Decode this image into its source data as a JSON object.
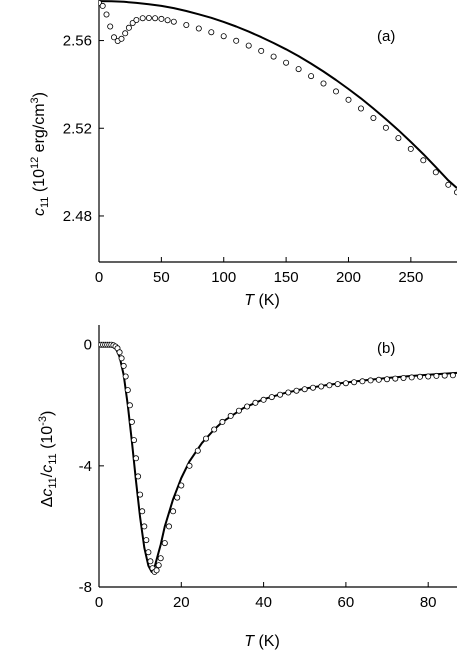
{
  "chart_data": [
    {
      "panel": "(a)",
      "type": "scatter",
      "xlabel": {
        "symbol": "T",
        "unit": " (K)"
      },
      "ylabel": {
        "symbol": "c",
        "sub": "11",
        "prefix": " (10",
        "exp": "12",
        "mid": " erg/cm",
        "exp2": "3",
        "suffix": ")"
      },
      "xlim": [
        0,
        287
      ],
      "ylim": [
        2.459,
        2.5785
      ],
      "xticks": [
        0,
        50,
        100,
        150,
        200,
        250
      ],
      "xtick_labels": [
        "0",
        "50",
        "100",
        "150",
        "200",
        "250"
      ],
      "yticks": [
        2.48,
        2.52,
        2.56
      ],
      "ytick_labels": [
        "2.48",
        "2.52",
        "2.56"
      ],
      "series": [
        {
          "style": "line",
          "x": [
            0,
            10,
            20,
            30,
            40,
            50,
            60,
            70,
            80,
            90,
            100,
            110,
            120,
            130,
            140,
            150,
            160,
            170,
            180,
            190,
            200,
            210,
            220,
            230,
            240,
            250,
            260,
            270,
            280,
            287
          ],
          "y": [
            2.578,
            2.5779,
            2.5777,
            2.5772,
            2.5766,
            2.5758,
            2.5748,
            2.5735,
            2.572,
            2.5704,
            2.5685,
            2.5664,
            2.5641,
            2.5616,
            2.5589,
            2.556,
            2.5529,
            2.5495,
            2.5459,
            2.542,
            2.5379,
            2.5336,
            2.529,
            2.5242,
            2.5191,
            2.5138,
            2.5082,
            2.5023,
            2.4962,
            2.4927
          ]
        },
        {
          "style": "markers",
          "x": [
            0,
            3,
            6,
            9,
            12,
            15,
            18,
            21,
            24,
            27,
            30,
            35,
            40,
            45,
            50,
            55,
            60,
            70,
            80,
            90,
            100,
            110,
            120,
            130,
            140,
            150,
            160,
            170,
            180,
            190,
            200,
            210,
            220,
            230,
            240,
            250,
            260,
            270,
            280,
            287
          ],
          "y": [
            2.5772,
            2.5758,
            2.5719,
            2.5664,
            2.5615,
            2.5598,
            2.5608,
            2.5633,
            2.5658,
            2.568,
            2.5694,
            2.5702,
            2.5703,
            2.5702,
            2.5699,
            2.5693,
            2.5686,
            2.5671,
            2.5655,
            2.5638,
            2.562,
            2.5599,
            2.5577,
            2.5553,
            2.5527,
            2.5499,
            2.547,
            2.5438,
            2.5404,
            2.5368,
            2.533,
            2.529,
            2.5247,
            2.5202,
            2.5155,
            2.5106,
            2.5054,
            2.4999,
            2.4942,
            2.4908
          ]
        }
      ]
    },
    {
      "panel": "(b)",
      "type": "scatter",
      "xlabel": {
        "symbol": "T",
        "unit": " (K)"
      },
      "ylabel": {
        "delta": "Δ",
        "symbol": "c",
        "sub": "11",
        "slash": "/",
        "symbol2": "c",
        "sub2": "11",
        "prefix": " (10",
        "exp": "-3",
        "suffix": ")"
      },
      "xlim": [
        0,
        87
      ],
      "ylim": [
        -8,
        0.65
      ],
      "xticks": [
        0,
        20,
        40,
        60,
        80
      ],
      "xtick_labels": [
        "0",
        "20",
        "40",
        "60",
        "80"
      ],
      "yticks": [
        -8,
        -4,
        0
      ],
      "ytick_labels": [
        "-8",
        "-4",
        "0"
      ],
      "series": [
        {
          "style": "line",
          "x": [
            0,
            2,
            4,
            5,
            6,
            7,
            8,
            9,
            10,
            11,
            12,
            12.8,
            13.3,
            14,
            15,
            16,
            18,
            20,
            22,
            25,
            28,
            30,
            35,
            40,
            45,
            50,
            55,
            60,
            65,
            70,
            75,
            80,
            87
          ],
          "y": [
            0,
            0,
            -0.1,
            -0.4,
            -1.0,
            -2.0,
            -3.2,
            -4.5,
            -5.7,
            -6.7,
            -7.3,
            -7.5,
            -7.45,
            -7.1,
            -6.6,
            -6.0,
            -5.1,
            -4.4,
            -3.85,
            -3.25,
            -2.8,
            -2.55,
            -2.1,
            -1.8,
            -1.6,
            -1.45,
            -1.34,
            -1.25,
            -1.17,
            -1.1,
            -1.04,
            -0.99,
            -0.93
          ]
        },
        {
          "style": "markers",
          "x": [
            0.5,
            1,
            1.5,
            2,
            2.5,
            3,
            3.5,
            4,
            4.5,
            5,
            5.5,
            6,
            6.5,
            7,
            7.5,
            8,
            8.5,
            9,
            9.5,
            10,
            10.5,
            11,
            11.5,
            12,
            12.5,
            13,
            13.5,
            14,
            14.5,
            15,
            16,
            17,
            18,
            19,
            20,
            22,
            24,
            26,
            28,
            30,
            32,
            34,
            36,
            38,
            40,
            42,
            44,
            46,
            48,
            50,
            52,
            54,
            56,
            58,
            60,
            62,
            64,
            66,
            68,
            70,
            72,
            74,
            76,
            78,
            80,
            82,
            84,
            86
          ],
          "y": [
            0,
            0,
            0,
            0,
            0,
            0,
            -0.02,
            -0.06,
            -0.12,
            -0.25,
            -0.45,
            -0.7,
            -1.05,
            -1.5,
            -2.0,
            -2.55,
            -3.15,
            -3.75,
            -4.35,
            -4.95,
            -5.5,
            -6.0,
            -6.45,
            -6.85,
            -7.15,
            -7.38,
            -7.5,
            -7.45,
            -7.28,
            -7.05,
            -6.55,
            -6.0,
            -5.5,
            -5.05,
            -4.65,
            -4.0,
            -3.5,
            -3.1,
            -2.8,
            -2.55,
            -2.35,
            -2.18,
            -2.04,
            -1.92,
            -1.82,
            -1.73,
            -1.65,
            -1.58,
            -1.52,
            -1.47,
            -1.42,
            -1.38,
            -1.34,
            -1.3,
            -1.27,
            -1.24,
            -1.21,
            -1.18,
            -1.16,
            -1.14,
            -1.12,
            -1.1,
            -1.08,
            -1.06,
            -1.05,
            -1.03,
            -1.02,
            -1.01
          ]
        }
      ]
    }
  ]
}
